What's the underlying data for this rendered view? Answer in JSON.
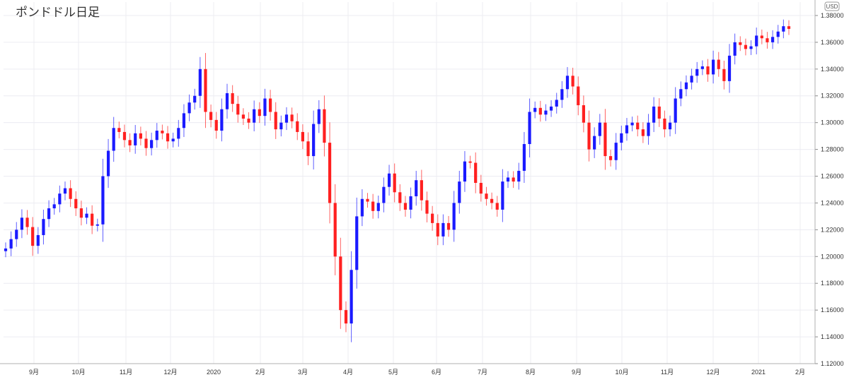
{
  "chart_data": {
    "type": "candlestick",
    "title": "ポンドドル日足",
    "unit": "USD",
    "ylim": [
      1.12,
      1.39
    ],
    "yticks": [
      1.12,
      1.14,
      1.16,
      1.18,
      1.2,
      1.22,
      1.24,
      1.26,
      1.28,
      1.3,
      1.32,
      1.34,
      1.36,
      1.38
    ],
    "ytick_labels": [
      "1.12000",
      "1.14000",
      "1.16000",
      "1.18000",
      "1.20000",
      "1.22000",
      "1.24000",
      "1.26000",
      "1.28000",
      "1.30000",
      "1.32000",
      "1.34000",
      "1.36000",
      "1.38000"
    ],
    "xticks": [
      "9月",
      "10月",
      "11月",
      "12月",
      "2020",
      "2月",
      "3月",
      "4月",
      "5月",
      "6月",
      "7月",
      "8月",
      "9月",
      "10月",
      "11月",
      "12月",
      "2021",
      "2月"
    ],
    "grid": true,
    "up_color": "#1a1aff",
    "down_color": "#ff2020",
    "closes": [
      1.206,
      1.213,
      1.22,
      1.229,
      1.222,
      1.208,
      1.216,
      1.228,
      1.236,
      1.239,
      1.247,
      1.251,
      1.243,
      1.236,
      1.229,
      1.232,
      1.223,
      1.224,
      1.26,
      1.279,
      1.296,
      1.293,
      1.287,
      1.283,
      1.292,
      1.288,
      1.281,
      1.287,
      1.294,
      1.292,
      1.286,
      1.288,
      1.296,
      1.307,
      1.315,
      1.32,
      1.34,
      1.308,
      1.302,
      1.294,
      1.31,
      1.322,
      1.314,
      1.306,
      1.303,
      1.3,
      1.31,
      1.305,
      1.318,
      1.308,
      1.295,
      1.3,
      1.306,
      1.301,
      1.293,
      1.286,
      1.275,
      1.299,
      1.31,
      1.285,
      1.24,
      1.2,
      1.16,
      1.15,
      1.19,
      1.23,
      1.243,
      1.241,
      1.234,
      1.24,
      1.252,
      1.262,
      1.248,
      1.24,
      1.235,
      1.245,
      1.257,
      1.242,
      1.232,
      1.225,
      1.215,
      1.225,
      1.22,
      1.24,
      1.256,
      1.271,
      1.27,
      1.255,
      1.247,
      1.243,
      1.24,
      1.235,
      1.256,
      1.259,
      1.256,
      1.264,
      1.284,
      1.308,
      1.311,
      1.306,
      1.309,
      1.312,
      1.317,
      1.325,
      1.335,
      1.327,
      1.313,
      1.3,
      1.28,
      1.29,
      1.3,
      1.275,
      1.272,
      1.285,
      1.292,
      1.298,
      1.3,
      1.295,
      1.29,
      1.3,
      1.312,
      1.303,
      1.295,
      1.3,
      1.318,
      1.325,
      1.33,
      1.335,
      1.34,
      1.342,
      1.336,
      1.347,
      1.34,
      1.331,
      1.35,
      1.36,
      1.358,
      1.355,
      1.357,
      1.365,
      1.363,
      1.36,
      1.364,
      1.368,
      1.372,
      1.37
    ]
  }
}
